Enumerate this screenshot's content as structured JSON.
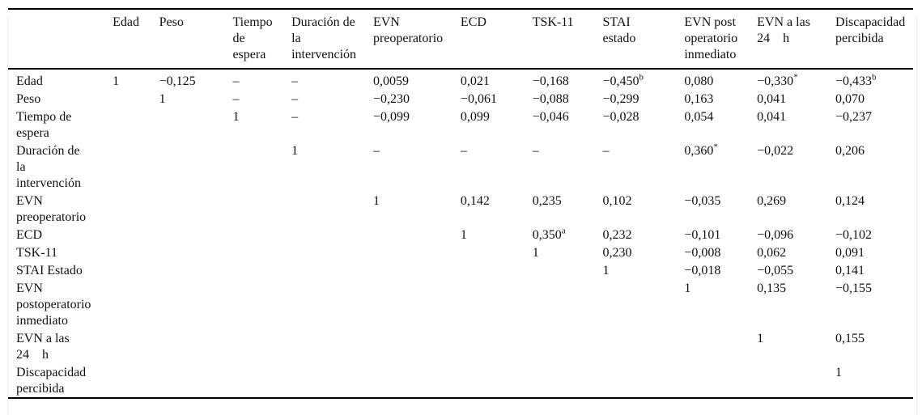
{
  "colors": {
    "background": "#ffffff",
    "text": "#111111",
    "rule": "#000000",
    "page_edge": "#ececec"
  },
  "table": {
    "header_display": [
      "",
      "Edad",
      "Peso",
      "Tiempo\nde\nespera",
      "Duración de\nla\nintervención",
      "EVN\npreoperatorio",
      "ECD",
      "TSK-11",
      "STAI\nestado",
      "EVN post\noperatorio\ninmediato",
      "EVN a las\n24    h",
      "Discapacidad\npercibida"
    ],
    "row_labels_display": [
      "Edad",
      "Peso",
      "Tiempo de\nespera",
      "Duración de\nla\nintervención",
      "EVN\npreoperatorio",
      "ECD",
      "TSK-11",
      "STAI Estado",
      "EVN\npostoperatorio\ninmediato",
      "EVN a las\n24    h",
      "Discapacidad\npercibida"
    ]
  },
  "chart_data": {
    "type": "table",
    "columns": [
      "Edad",
      "Peso",
      "Tiempo de espera",
      "Duración de la intervención",
      "EVN preoperatorio",
      "ECD",
      "TSK-11",
      "STAI estado",
      "EVN post operatorio inmediato",
      "EVN a las 24 h",
      "Discapacidad percibida"
    ],
    "rows": [
      {
        "label": "Edad",
        "values": [
          "1",
          "−0,125",
          "–",
          "–",
          "0,0059",
          "0,021",
          "−0,168",
          "−0,450^b",
          "0,080",
          "−0,330^*",
          "−0,433^b"
        ]
      },
      {
        "label": "Peso",
        "values": [
          "",
          "1",
          "–",
          "–",
          "−0,230",
          "−0,061",
          "−0,088",
          "−0,299",
          "0,163",
          "0,041",
          "0,070"
        ]
      },
      {
        "label": "Tiempo de espera",
        "values": [
          "",
          "",
          "1",
          "–",
          "−0,099",
          "0,099",
          "−0,046",
          "−0,028",
          "0,054",
          "0,041",
          "−0,237"
        ]
      },
      {
        "label": "Duración de la intervención",
        "values": [
          "",
          "",
          "",
          "1",
          "–",
          "–",
          "–",
          "–",
          "0,360^*",
          "−0,022",
          "0,206"
        ]
      },
      {
        "label": "EVN preoperatorio",
        "values": [
          "",
          "",
          "",
          "",
          "1",
          "0,142",
          "0,235",
          "0,102",
          "−0,035",
          "0,269",
          "0,124"
        ]
      },
      {
        "label": "ECD",
        "values": [
          "",
          "",
          "",
          "",
          "",
          "1",
          "0,350^a",
          "0,232",
          "−0,101",
          "−0,096",
          "−0,102"
        ]
      },
      {
        "label": "TSK-11",
        "values": [
          "",
          "",
          "",
          "",
          "",
          "",
          "1",
          "0,230",
          "−0,008",
          "0,062",
          "0,091"
        ]
      },
      {
        "label": "STAI Estado",
        "values": [
          "",
          "",
          "",
          "",
          "",
          "",
          "",
          "1",
          "−0,018",
          "−0,055",
          "0,141"
        ]
      },
      {
        "label": "EVN postoperatorio inmediato",
        "values": [
          "",
          "",
          "",
          "",
          "",
          "",
          "",
          "",
          "1",
          "0,135",
          "−0,155"
        ]
      },
      {
        "label": "EVN a las 24 h",
        "values": [
          "",
          "",
          "",
          "",
          "",
          "",
          "",
          "",
          "",
          "1",
          "0,155"
        ]
      },
      {
        "label": "Discapacidad percibida",
        "values": [
          "",
          "",
          "",
          "",
          "",
          "",
          "",
          "",
          "",
          "",
          "1"
        ]
      }
    ]
  }
}
